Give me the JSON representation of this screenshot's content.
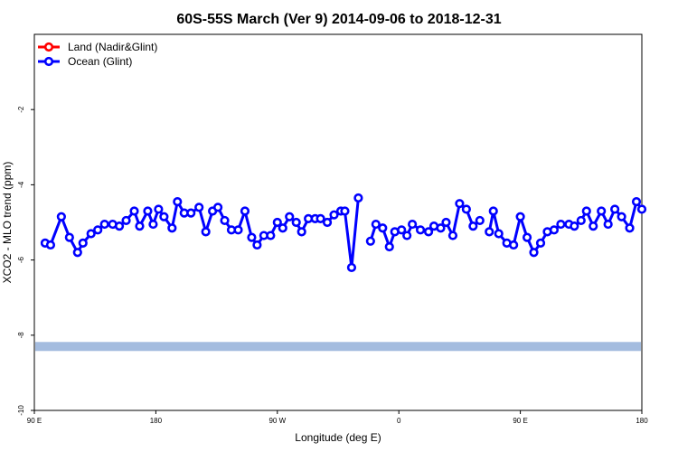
{
  "chart_data": {
    "type": "line",
    "title": "60S-55S March (Ver 9)   2014-09-06 to 2018-12-31",
    "xlabel": "Longitude (deg E)",
    "ylabel": "XCO2 - MLO trend (ppm)",
    "xlim": [
      90,
      450
    ],
    "ylim": [
      -10,
      0
    ],
    "xticks": [
      {
        "value": 90,
        "label": "90 E"
      },
      {
        "value": 180,
        "label": "180"
      },
      {
        "value": 270,
        "label": "90 W"
      },
      {
        "value": 360,
        "label": "0"
      },
      {
        "value": 450,
        "label": "90 E"
      },
      {
        "value": 540,
        "label": "180"
      }
    ],
    "yticks": [
      {
        "value": -2,
        "label": "-2"
      },
      {
        "value": -4,
        "label": "-4"
      },
      {
        "value": -6,
        "label": "-6"
      },
      {
        "value": -8,
        "label": "-8"
      },
      {
        "value": -10,
        "label": "-10"
      }
    ],
    "legend_position": "top-left",
    "band": {
      "ymin": -8.42,
      "ymax": -8.18,
      "color": "#a4bcdf"
    },
    "series": [
      {
        "name": "Land (Nadir&Glint)",
        "color": "#ff0000",
        "x": [],
        "y": []
      },
      {
        "name": "Ocean (Glint)",
        "color": "#0000ff",
        "segments": [
          {
            "x": [
              98,
              102,
              110,
              116,
              122,
              126,
              132,
              137,
              142,
              148,
              153,
              158,
              164,
              168,
              174,
              178,
              182,
              186,
              192,
              196,
              201,
              206,
              212,
              217,
              222,
              226,
              231,
              236,
              241,
              246,
              251,
              255,
              260,
              265,
              270,
              274,
              279,
              284,
              288,
              293,
              298,
              302,
              307,
              312,
              317,
              320,
              325,
              330
            ],
            "y": [
              -5.55,
              -5.6,
              -4.85,
              -5.4,
              -5.8,
              -5.55,
              -5.3,
              -5.2,
              -5.05,
              -5.05,
              -5.1,
              -4.95,
              -4.7,
              -5.1,
              -4.7,
              -5.05,
              -4.65,
              -4.85,
              -5.15,
              -4.45,
              -4.75,
              -4.75,
              -4.6,
              -5.25,
              -4.7,
              -4.6,
              -4.95,
              -5.2,
              -5.2,
              -4.7,
              -5.4,
              -5.6,
              -5.35,
              -5.35,
              -5.0,
              -5.15,
              -4.85,
              -5.0,
              -5.25,
              -4.9,
              -4.9,
              -4.9,
              -5.0,
              -4.8,
              -4.7,
              -4.7,
              -6.2,
              -4.35
            ]
          },
          {
            "x": [
              339,
              343,
              348,
              353,
              357,
              362,
              366,
              370,
              376,
              382,
              386,
              391,
              395,
              400,
              405,
              410,
              415,
              420
            ],
            "y": [
              -5.5,
              -5.05,
              -5.15,
              -5.65,
              -5.25,
              -5.2,
              -5.35,
              -5.05,
              -5.2,
              -5.25,
              -5.1,
              -5.15,
              -5.0,
              -5.35,
              -4.5,
              -4.65,
              -5.1,
              -4.95
            ]
          },
          {
            "x": [
              427,
              430,
              434,
              440,
              445,
              450,
              455,
              460,
              465,
              470,
              475,
              480,
              486,
              490,
              495,
              499,
              504,
              510,
              515,
              520,
              525,
              531,
              536,
              540
            ],
            "y": [
              -5.25,
              -4.7,
              -5.3,
              -5.55,
              -5.6,
              -4.85,
              -5.4,
              -5.8,
              -5.55,
              -5.25,
              -5.2,
              -5.05,
              -5.05,
              -5.1,
              -4.95,
              -4.7,
              -5.1,
              -4.7,
              -5.05,
              -4.65,
              -4.85,
              -5.15,
              -4.45,
              -4.65
            ]
          }
        ]
      }
    ]
  }
}
